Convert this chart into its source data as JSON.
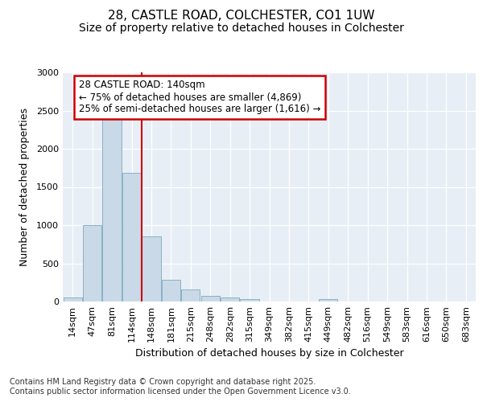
{
  "title_line1": "28, CASTLE ROAD, COLCHESTER, CO1 1UW",
  "title_line2": "Size of property relative to detached houses in Colchester",
  "xlabel": "Distribution of detached houses by size in Colchester",
  "ylabel": "Number of detached properties",
  "bar_color": "#c9d9e8",
  "bar_edge_color": "#7baabf",
  "vline_color": "#cc0000",
  "annotation_text": "28 CASTLE ROAD: 140sqm\n← 75% of detached houses are smaller (4,869)\n25% of semi-detached houses are larger (1,616) →",
  "annotation_box_color": "#ffffff",
  "annotation_box_edge": "#cc0000",
  "categories": [
    "14sqm",
    "47sqm",
    "81sqm",
    "114sqm",
    "148sqm",
    "181sqm",
    "215sqm",
    "248sqm",
    "282sqm",
    "315sqm",
    "349sqm",
    "382sqm",
    "415sqm",
    "449sqm",
    "482sqm",
    "516sqm",
    "549sqm",
    "583sqm",
    "616sqm",
    "650sqm",
    "683sqm"
  ],
  "values": [
    50,
    1000,
    2500,
    1680,
    850,
    280,
    160,
    75,
    50,
    35,
    0,
    0,
    0,
    30,
    0,
    0,
    0,
    0,
    0,
    0,
    0
  ],
  "ylim": [
    0,
    3000
  ],
  "yticks": [
    0,
    500,
    1000,
    1500,
    2000,
    2500,
    3000
  ],
  "plot_bg": "#e8eef5",
  "fig_bg": "#ffffff",
  "footer_text": "Contains HM Land Registry data © Crown copyright and database right 2025.\nContains public sector information licensed under the Open Government Licence v3.0.",
  "title_fontsize": 11,
  "subtitle_fontsize": 10,
  "tick_fontsize": 8,
  "annotation_fontsize": 8.5,
  "ylabel_fontsize": 9,
  "xlabel_fontsize": 9,
  "footer_fontsize": 7
}
